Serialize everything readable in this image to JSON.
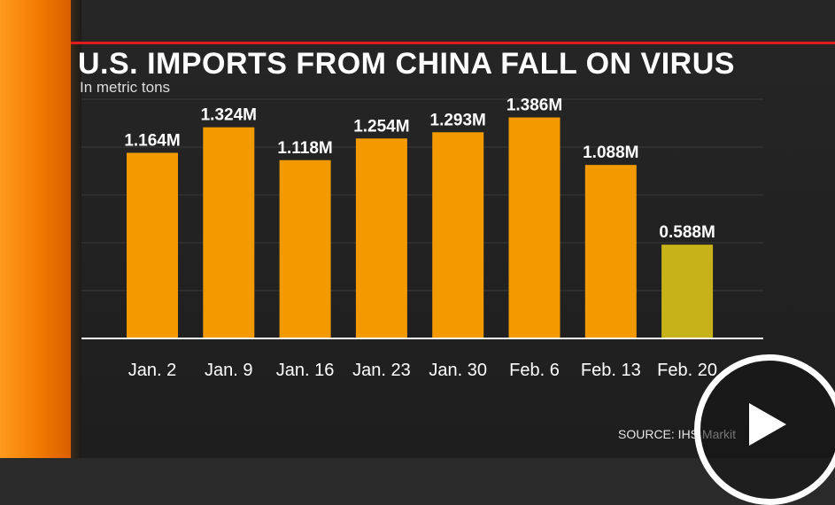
{
  "chart_data": {
    "type": "bar",
    "title": "U.S. IMPORTS FROM CHINA FALL ON VIRUS",
    "subtitle": "In metric tons",
    "categories": [
      "Jan. 2",
      "Jan. 9",
      "Jan. 16",
      "Jan. 23",
      "Jan. 30",
      "Feb. 6",
      "Feb. 13",
      "Feb. 20"
    ],
    "values": [
      1164000,
      1324000,
      1118000,
      1254000,
      1293000,
      1386000,
      1088000,
      588000
    ],
    "value_labels": [
      "1.164M",
      "1.324M",
      "1.118M",
      "1.254M",
      "1.293M",
      "1.386M",
      "1.088M",
      "0.588M"
    ],
    "ylim": [
      0,
      1500000
    ],
    "grid": true,
    "colors": {
      "bar": "#f29a00",
      "bar_highlight": "#c8b21a",
      "highlight_index": 7,
      "grid": "#3a3a3a",
      "axis": "#ffffff",
      "text": "#ffffff"
    }
  },
  "source": "SOURCE: IHS Markit",
  "overlay": {
    "icon": "play-icon"
  }
}
